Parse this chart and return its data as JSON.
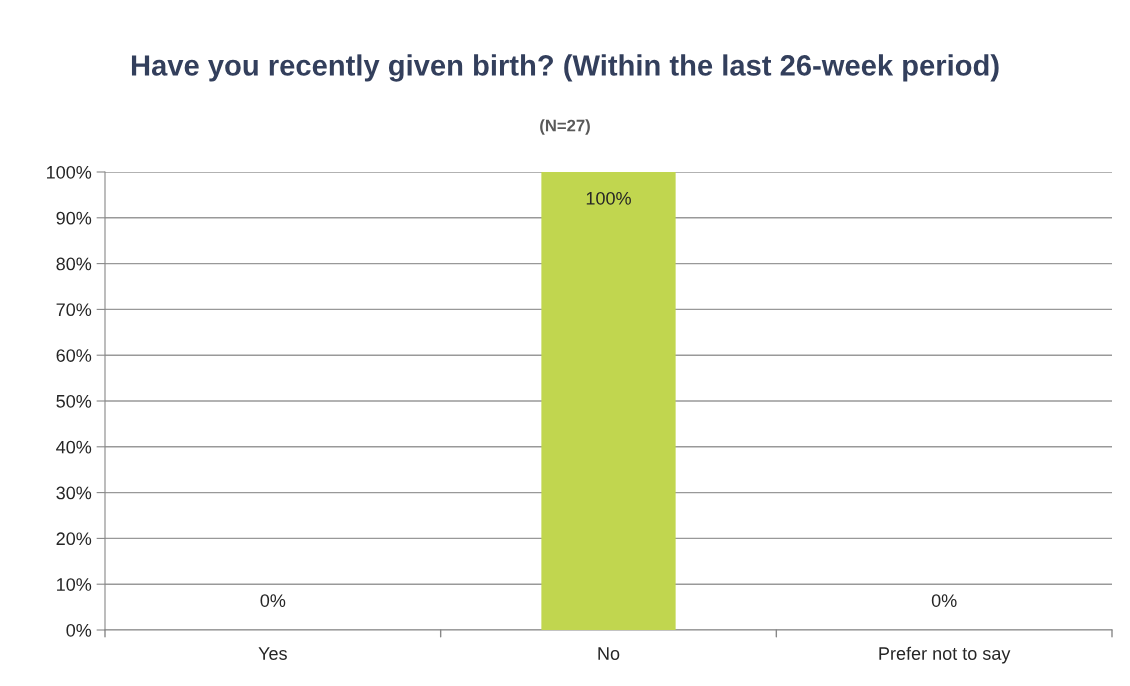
{
  "chart_data": {
    "type": "bar",
    "title": "Have you recently given birth? (Within the last 26-week period)",
    "subtitle": "(N=27)",
    "categories": [
      "Yes",
      "No",
      "Prefer not to say"
    ],
    "values": [
      0,
      100,
      0
    ],
    "color": "#c1d64f",
    "value_labels": [
      "0%",
      "100%",
      "0%"
    ],
    "ylim": [
      0,
      100
    ],
    "yticks": [
      {
        "value": 0,
        "label": "0%"
      },
      {
        "value": 10,
        "label": "10%"
      },
      {
        "value": 20,
        "label": "20%"
      },
      {
        "value": 30,
        "label": "30%"
      },
      {
        "value": 40,
        "label": "40%"
      },
      {
        "value": 50,
        "label": "50%"
      },
      {
        "value": 60,
        "label": "60%"
      },
      {
        "value": 70,
        "label": "70%"
      },
      {
        "value": 80,
        "label": "80%"
      },
      {
        "value": 90,
        "label": "90%"
      },
      {
        "value": 100,
        "label": "100%"
      }
    ],
    "grid": "y",
    "legend": false
  }
}
